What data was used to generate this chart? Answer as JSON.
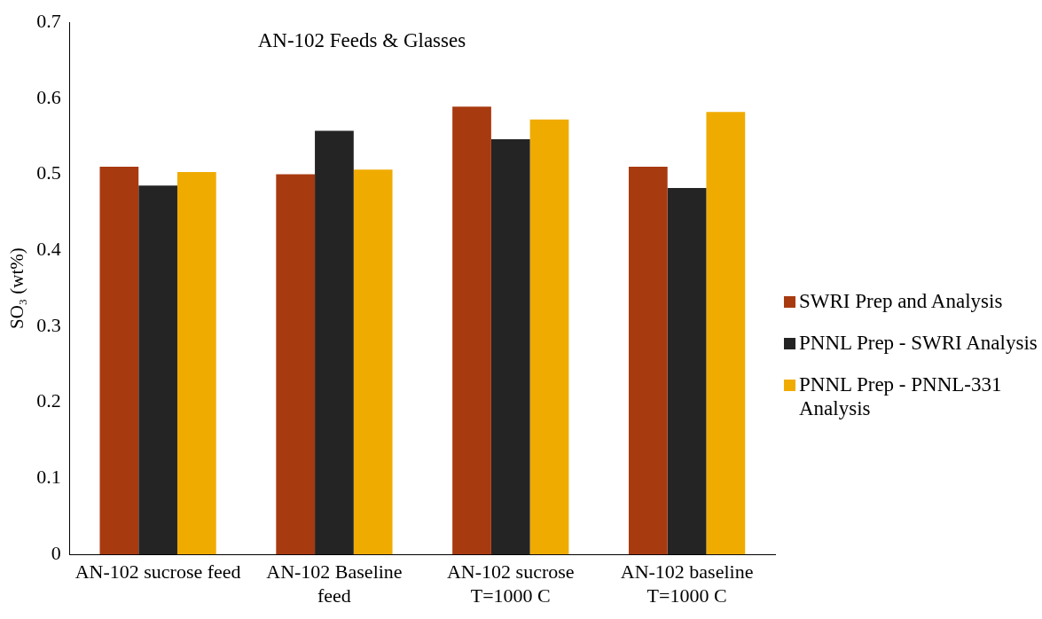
{
  "chart_data": {
    "type": "bar",
    "title": "AN-102 Feeds & Glasses",
    "ylabel": "SO₃ (wt%)",
    "categories": [
      "AN-102 sucrose feed",
      "AN-102 Baseline feed",
      "AN-102 sucrose T=1000 C",
      "AN-102 baseline T=1000 C"
    ],
    "series": [
      {
        "name": "SWRI Prep and Analysis",
        "color": "#a83a10",
        "values": [
          0.51,
          0.5,
          0.589,
          0.51
        ]
      },
      {
        "name": "PNNL Prep - SWRI Analysis",
        "color": "#242424",
        "values": [
          0.485,
          0.557,
          0.546,
          0.482
        ]
      },
      {
        "name": "PNNL Prep - PNNL-331 Analysis",
        "color": "#f0ab00",
        "values": [
          0.503,
          0.506,
          0.572,
          0.582
        ]
      }
    ],
    "ylim": [
      0,
      0.7
    ],
    "yticks": [
      0,
      0.1,
      0.2,
      0.3,
      0.4,
      0.5,
      0.6,
      0.7
    ],
    "grid": false,
    "legend": "right"
  }
}
